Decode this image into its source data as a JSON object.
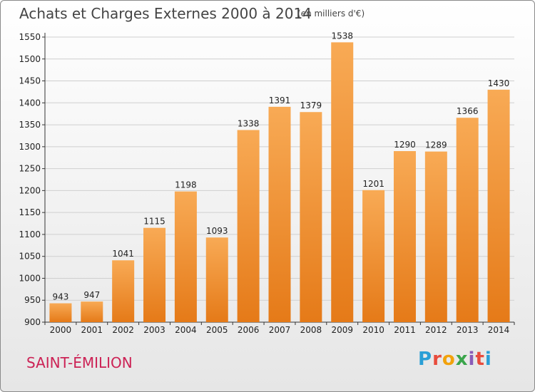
{
  "title": "Achats et Charges Externes 2000 à 2014",
  "subtitle": "(en milliers d'€)",
  "commune": "SAINT-ÉMILION",
  "logo": {
    "letters": [
      "P",
      "r",
      "o",
      "x",
      "i",
      "t",
      "i"
    ],
    "colors": [
      "#2a9fd6",
      "#e84c3d",
      "#f2a20c",
      "#3aa54b",
      "#8a5cb8",
      "#e84c3d",
      "#2a9fd6"
    ]
  },
  "colors": {
    "bar": "#f08a26",
    "bar_light": "#f8aa55",
    "grid": "#cfcfcf",
    "title": "#444444",
    "commune": "#cc2255"
  },
  "chart_data": {
    "type": "bar",
    "title": "Achats et Charges Externes 2000 à 2014",
    "subtitle": "(en milliers d'€)",
    "xlabel": "",
    "ylabel": "",
    "categories": [
      "2000",
      "2001",
      "2002",
      "2003",
      "2004",
      "2005",
      "2006",
      "2007",
      "2008",
      "2009",
      "2010",
      "2011",
      "2012",
      "2013",
      "2014"
    ],
    "values": [
      943,
      947,
      1041,
      1115,
      1198,
      1093,
      1338,
      1391,
      1379,
      1538,
      1201,
      1290,
      1289,
      1366,
      1430
    ],
    "ylim": [
      900,
      1550
    ],
    "yticks": [
      900,
      950,
      1000,
      1050,
      1100,
      1150,
      1200,
      1250,
      1300,
      1350,
      1400,
      1450,
      1500,
      1550
    ],
    "grid": true,
    "legend": "none"
  }
}
